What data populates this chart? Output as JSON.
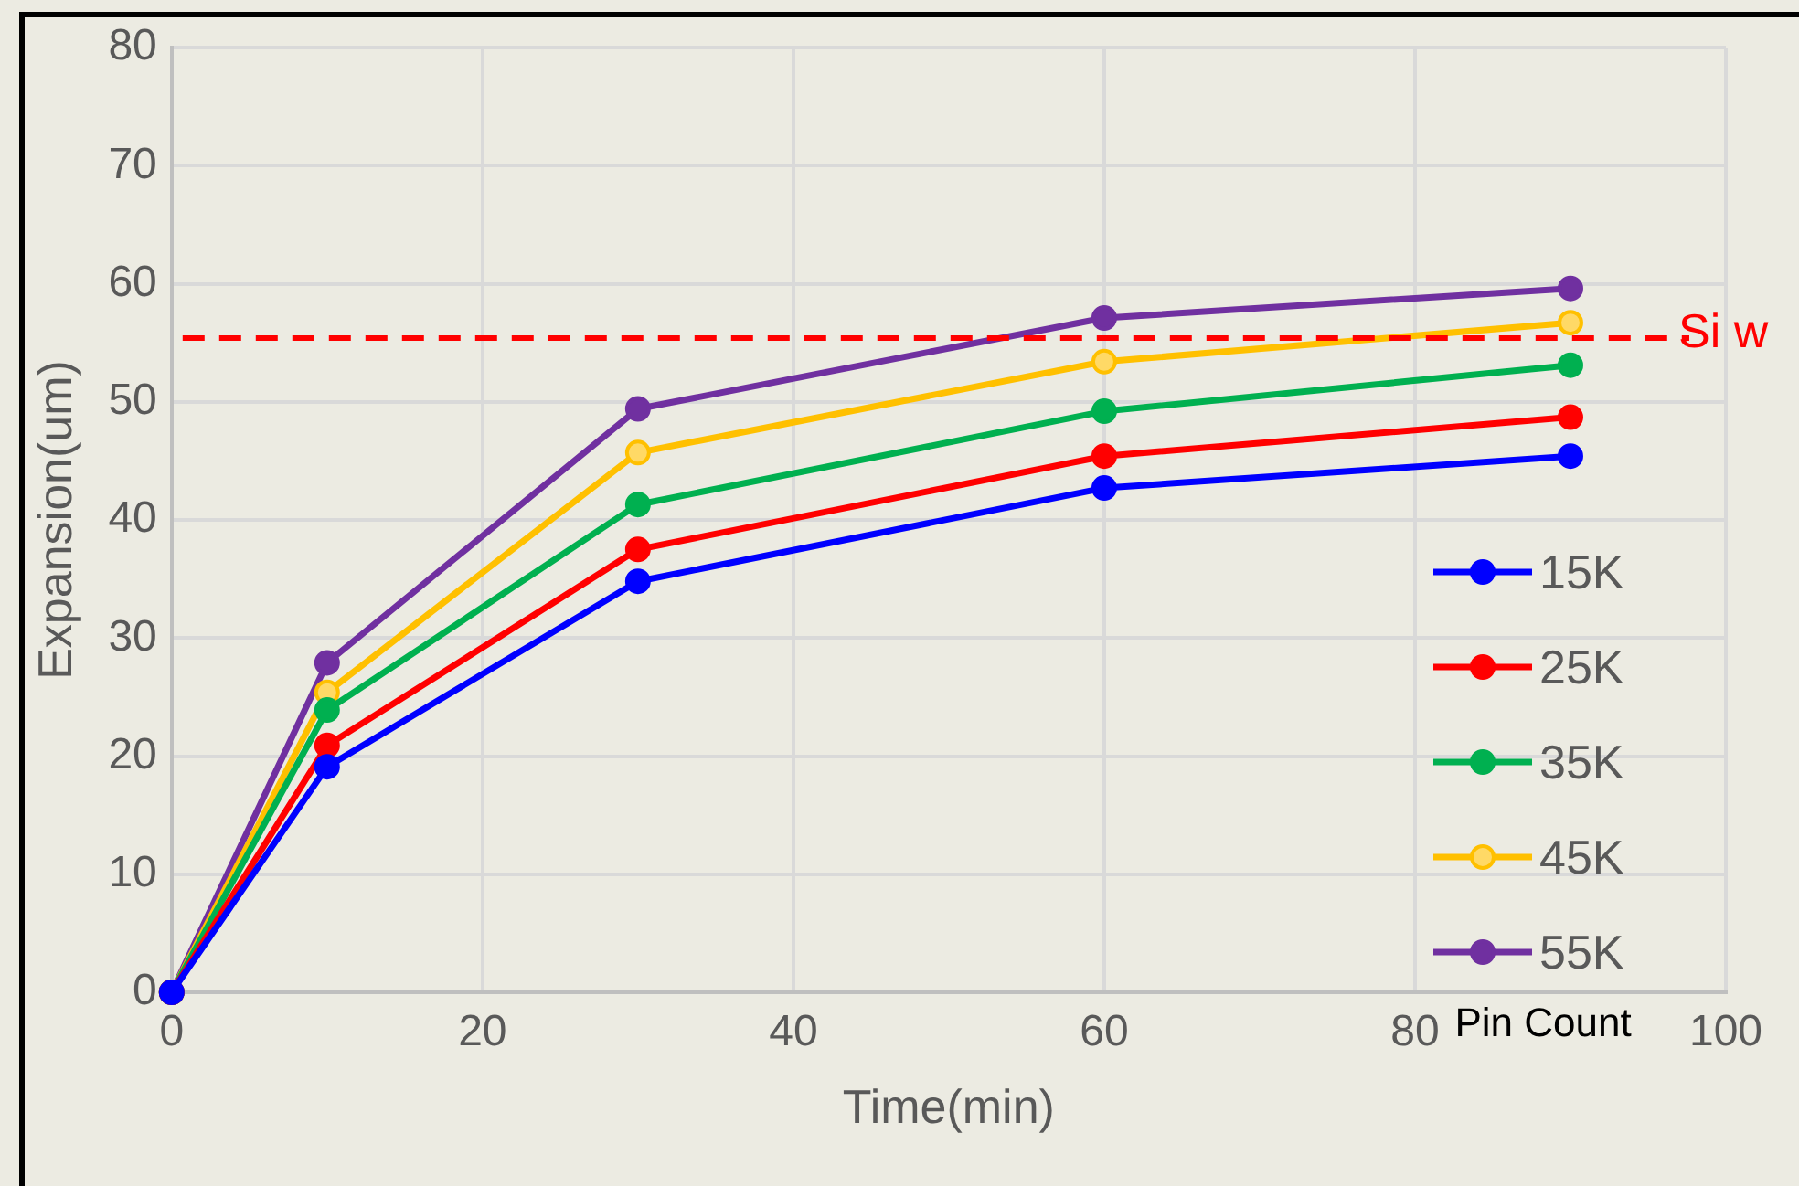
{
  "chart_data": {
    "type": "line",
    "xlabel": "Time(min)",
    "ylabel": "Expansion(um)",
    "legend_title": "Pin Count",
    "xlim": [
      0,
      100
    ],
    "xticks": [
      0,
      20,
      40,
      60,
      80,
      100
    ],
    "ylim": [
      0,
      80
    ],
    "yticks": [
      0,
      10,
      20,
      30,
      40,
      50,
      60,
      70,
      80
    ],
    "grid": true,
    "legend": "bottom right",
    "marker": "circle",
    "line_style": "solid",
    "x": [
      0,
      10,
      30,
      60,
      90
    ],
    "series": [
      {
        "name": "15K",
        "color": "#0000ff",
        "values": [
          0,
          19.1,
          34.8,
          42.7,
          45.4
        ]
      },
      {
        "name": "25K",
        "color": "#ff0000",
        "values": [
          0,
          20.9,
          37.5,
          45.4,
          48.7
        ]
      },
      {
        "name": "35K",
        "color": "#00b050",
        "values": [
          0,
          23.9,
          41.3,
          49.2,
          53.1
        ]
      },
      {
        "name": "45K",
        "color": "#ffc000",
        "values": [
          0,
          25.4,
          45.7,
          53.4,
          56.7
        ]
      },
      {
        "name": "55K",
        "color": "#7030a0",
        "values": [
          0,
          27.9,
          49.4,
          57.1,
          59.6
        ]
      }
    ],
    "ref_lines": [
      {
        "axis": "y",
        "value": 55.4,
        "label": "Si w",
        "color": "#ff0000",
        "line_style": "dashed"
      }
    ]
  }
}
